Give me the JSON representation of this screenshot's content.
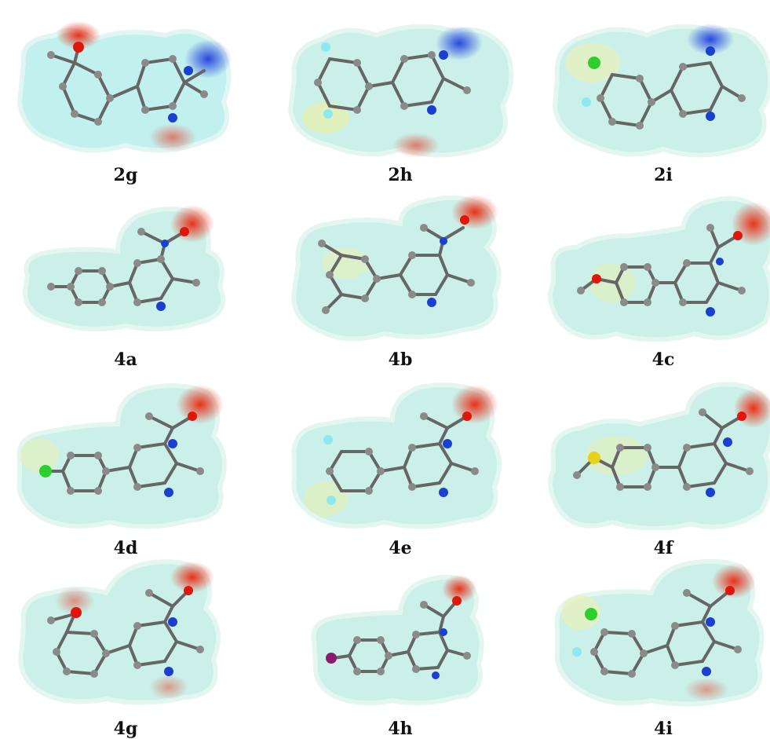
{
  "figure": {
    "panels": [
      {
        "label": "2g"
      },
      {
        "label": "2h"
      },
      {
        "label": "2i"
      },
      {
        "label": "4a"
      },
      {
        "label": "4b"
      },
      {
        "label": "4c"
      },
      {
        "label": "4d"
      },
      {
        "label": "4e"
      },
      {
        "label": "4f"
      },
      {
        "label": "4g"
      },
      {
        "label": "4h"
      },
      {
        "label": "4i"
      }
    ]
  },
  "colors": {
    "carbon": "#7a7a7a",
    "hydrogen": "#e8e8e8",
    "nitrogen": "#1b3fd1",
    "oxygen": "#e0160c",
    "chlorine": "#2ccf2c",
    "fluorine": "#8ee8f0",
    "sulfur": "#e6d21a",
    "iodine": "#8b1a6b",
    "surface_cyan": "#7ee8ee",
    "surface_green": "#dff3c8",
    "surface_red": "#e8321a",
    "surface_blue": "#2848e0"
  }
}
